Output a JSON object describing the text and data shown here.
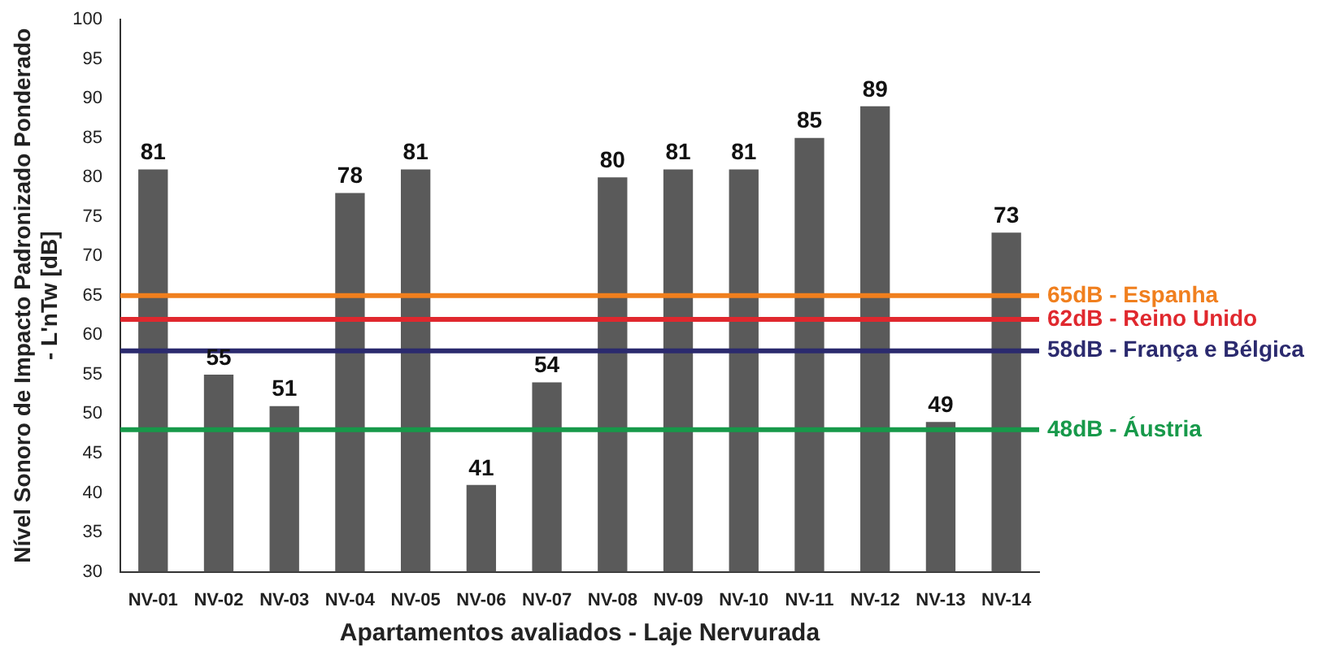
{
  "chart_data": {
    "type": "bar",
    "xlabel": "Apartamentos avaliados - Laje Nervurada",
    "ylabel": "Nível Sonoro de Impacto Padronizado Ponderado\n- L'nTw [dB]",
    "categories": [
      "NV-01",
      "NV-02",
      "NV-03",
      "NV-04",
      "NV-05",
      "NV-06",
      "NV-07",
      "NV-08",
      "NV-09",
      "NV-10",
      "NV-11",
      "NV-12",
      "NV-13",
      "NV-14"
    ],
    "values": [
      81,
      55,
      51,
      78,
      81,
      41,
      54,
      80,
      81,
      81,
      85,
      89,
      49,
      73
    ],
    "color": "#5a5a5a",
    "ylim": [
      30,
      100
    ],
    "yticks": [
      30,
      35,
      40,
      45,
      50,
      55,
      60,
      65,
      70,
      75,
      80,
      85,
      90,
      95,
      100
    ],
    "grid": false,
    "data_labels": true,
    "ref_lines": [
      {
        "axis": "y",
        "value": 65,
        "label": "65dB - Espanha",
        "color": "#f07f1e"
      },
      {
        "axis": "y",
        "value": 62,
        "label": "62dB - Reino Unido",
        "color": "#e0282e"
      },
      {
        "axis": "y",
        "value": 58,
        "label": "58dB - França e Bélgica",
        "color": "#2b2a6e"
      },
      {
        "axis": "y",
        "value": 48,
        "label": "48dB - Áustria",
        "color": "#17994a"
      }
    ]
  }
}
